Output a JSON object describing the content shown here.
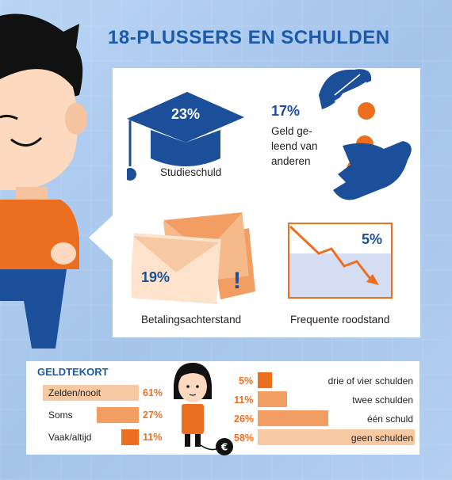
{
  "title": "18-PLUSSERS EN SCHULDEN",
  "stats": {
    "studieschuld": {
      "percent": "23%",
      "label": "Studieschuld"
    },
    "geleend": {
      "percent": "17%",
      "label_lines": [
        "Geld ge-",
        "leend van",
        "anderen"
      ]
    },
    "betaling": {
      "percent": "19%",
      "label": "Betalingsachterstand"
    },
    "roodstand": {
      "percent": "5%",
      "label": "Frequente roodstand"
    }
  },
  "geldtekort": {
    "title": "GELDTEKORT",
    "rows": [
      {
        "label": "Zelden/nooit",
        "percent": "61%",
        "value": 61
      },
      {
        "label": "Soms",
        "percent": "27%",
        "value": 27
      },
      {
        "label": "Vaak/altijd",
        "percent": "11%",
        "value": 11
      }
    ]
  },
  "schulden": {
    "rows": [
      {
        "label": "drie of vier schulden",
        "percent": "5%",
        "value": 5
      },
      {
        "label": "twee schulden",
        "percent": "11%",
        "value": 11
      },
      {
        "label": "één schuld",
        "percent": "26%",
        "value": 26
      },
      {
        "label": "geen schulden",
        "percent": "58%",
        "value": 58
      }
    ]
  },
  "colors": {
    "title_blue": "#1b5aa8",
    "orange": "#ec6f1f",
    "light_orange": "#f7c9a3",
    "navy": "#1b4f9a"
  },
  "icons": [
    "graduation-cap-icon",
    "hands-coins-icon",
    "envelopes-icon",
    "declining-chart-icon",
    "ball-and-chain-icon",
    "euro-icon"
  ]
}
